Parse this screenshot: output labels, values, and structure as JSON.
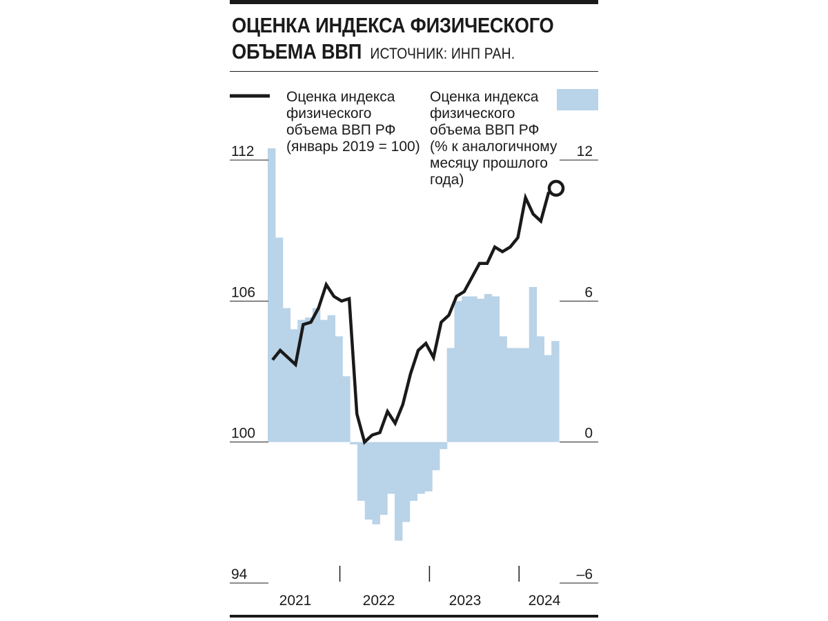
{
  "header": {
    "title_line1": "Оценка индекса физического",
    "title_line2": "объема ВВП",
    "source": "Источник: ИНП РАН."
  },
  "legend": {
    "line_label": [
      "Оценка индекса",
      "физического",
      "объема ВВП РФ",
      "(январь 2019 = 100)"
    ],
    "bar_label": [
      "Оценка индекса",
      "физического",
      "объема ВВП РФ",
      "(% к аналогичному",
      "месяцу прошлого",
      "года)"
    ]
  },
  "colors": {
    "line": "#1a1a1a",
    "bars": "#b9d3e8",
    "text": "#1a1a1a"
  },
  "chart_data": {
    "type": "line+bar",
    "x_labels": [
      "2021",
      "2022",
      "2023",
      "2024"
    ],
    "left_axis": {
      "ticks": [
        "112",
        "106",
        "100",
        "94"
      ],
      "ylim": [
        94,
        112
      ]
    },
    "right_axis": {
      "ticks": [
        "12",
        "6",
        "0",
        "–6"
      ],
      "ylim": [
        -6,
        12
      ]
    },
    "series": [
      {
        "kind": "bar",
        "axis": "right",
        "values": [
          12.5,
          8.7,
          5.7,
          4.8,
          5.2,
          5.3,
          5.7,
          5.2,
          5.4,
          4.5,
          2.8,
          -0.1,
          -2.5,
          -3.3,
          -3.5,
          -3.1,
          -2.2,
          -4.2,
          -3.4,
          -2.5,
          -2.2,
          -2.1,
          -1.2,
          -0.3,
          4.0,
          6.0,
          6.2,
          6.2,
          6.1,
          6.3,
          6.2,
          4.5,
          4.0,
          4.0,
          4.0,
          6.6,
          4.5,
          3.7,
          4.3
        ]
      },
      {
        "kind": "line",
        "axis": "left",
        "values": [
          103.5,
          103.9,
          103.6,
          103.3,
          105.0,
          105.1,
          105.7,
          106.7,
          106.2,
          106.0,
          106.1,
          101.2,
          100.0,
          100.3,
          100.4,
          101.3,
          100.8,
          101.6,
          102.9,
          103.9,
          104.2,
          103.6,
          105.1,
          105.4,
          106.2,
          106.4,
          107.0,
          107.6,
          107.6,
          108.3,
          108.1,
          108.3,
          108.7,
          110.4,
          109.7,
          109.4,
          110.6,
          110.8
        ]
      }
    ]
  }
}
